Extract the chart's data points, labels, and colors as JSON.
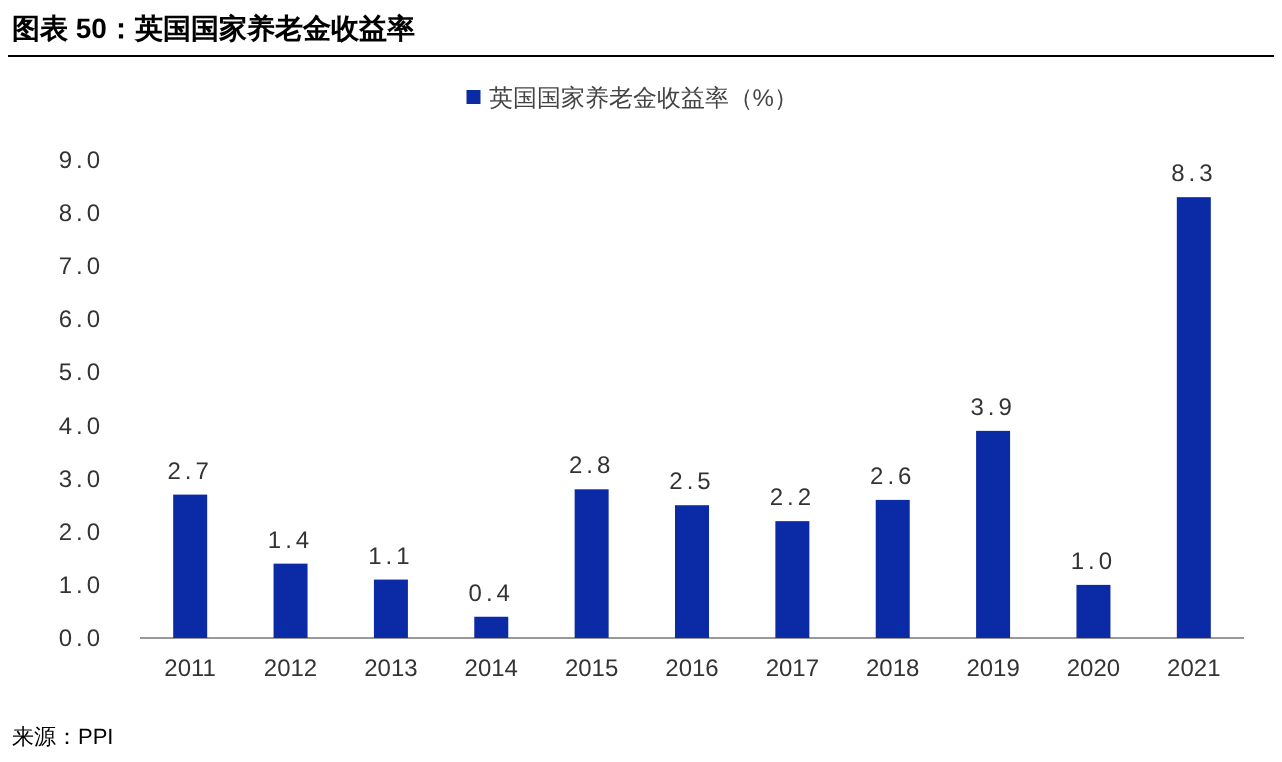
{
  "chart_data": {
    "type": "bar",
    "title": "图表 50：英国国家养老金收益率",
    "categories": [
      "2011",
      "2012",
      "2013",
      "2014",
      "2015",
      "2016",
      "2017",
      "2018",
      "2019",
      "2020",
      "2021"
    ],
    "series": [
      {
        "name": "英国国家养老金收益率（%）",
        "color": "#0b2aa6",
        "values": [
          2.7,
          1.4,
          1.1,
          0.4,
          2.8,
          2.5,
          2.2,
          2.6,
          3.9,
          1.0,
          8.3
        ]
      }
    ],
    "ylim": [
      0,
      9
    ],
    "yticks": [
      {
        "value": 0,
        "label": "0.0"
      },
      {
        "value": 1,
        "label": "1.0"
      },
      {
        "value": 2,
        "label": "2.0"
      },
      {
        "value": 3,
        "label": "3.0"
      },
      {
        "value": 4,
        "label": "4.0"
      },
      {
        "value": 5,
        "label": "5.0"
      },
      {
        "value": 6,
        "label": "6.0"
      },
      {
        "value": 7,
        "label": "7.0"
      },
      {
        "value": 8,
        "label": "8.0"
      },
      {
        "value": 9,
        "label": "9.0"
      }
    ],
    "value_labels": [
      "2.7",
      "1.4",
      "1.1",
      "0.4",
      "2.8",
      "2.5",
      "2.2",
      "2.6",
      "3.9",
      "1.0",
      "8.3"
    ],
    "legend": "top",
    "annotations": [
      "来源：PPI"
    ]
  }
}
